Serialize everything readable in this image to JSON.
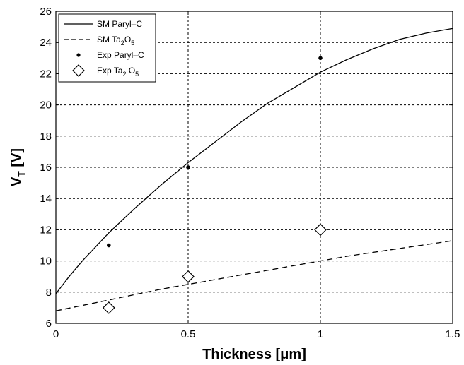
{
  "chart_data": {
    "type": "line",
    "title": "",
    "xlabel": "Thickness [μm]",
    "ylabel": {
      "main": "V",
      "sub": "T",
      "unit": " [V]"
    },
    "xlim": [
      0,
      1.5
    ],
    "ylim": [
      6,
      26
    ],
    "xticks": [
      0,
      0.5,
      1,
      1.5
    ],
    "xtick_labels": [
      "0",
      "0.5",
      "1",
      "1.5"
    ],
    "yticks": [
      6,
      8,
      10,
      12,
      14,
      16,
      18,
      20,
      22,
      24,
      26
    ],
    "ytick_labels": [
      "6",
      "8",
      "10",
      "12",
      "14",
      "16",
      "18",
      "20",
      "22",
      "24",
      "26"
    ],
    "grid": true,
    "legend_position": "top-left",
    "series": [
      {
        "name": "SM Paryl–C",
        "legend": {
          "base": "SM Paryl–C",
          "sub": "",
          "tail": ""
        },
        "style": "solid-line",
        "x": [
          0,
          0.05,
          0.1,
          0.15,
          0.2,
          0.3,
          0.4,
          0.5,
          0.6,
          0.7,
          0.8,
          0.9,
          1.0,
          1.1,
          1.2,
          1.3,
          1.4,
          1.5
        ],
        "y": [
          7.9,
          9.0,
          10.0,
          10.9,
          11.8,
          13.4,
          14.9,
          16.3,
          17.6,
          18.9,
          20.1,
          21.1,
          22.1,
          22.9,
          23.6,
          24.2,
          24.6,
          24.9
        ]
      },
      {
        "name": "SM Ta2O5",
        "legend": {
          "base": "SM Ta",
          "sub": "2",
          "tail": "O",
          "sub2": "5"
        },
        "style": "dashed-line",
        "x": [
          0,
          0.1,
          0.2,
          0.3,
          0.4,
          0.5,
          0.6,
          0.7,
          0.8,
          0.9,
          1.0,
          1.1,
          1.2,
          1.3,
          1.4,
          1.5
        ],
        "y": [
          6.8,
          7.15,
          7.5,
          7.85,
          8.2,
          8.5,
          8.8,
          9.1,
          9.4,
          9.7,
          10.0,
          10.3,
          10.55,
          10.8,
          11.05,
          11.3
        ]
      },
      {
        "name": "Exp Paryl–C",
        "legend": {
          "base": "Exp Paryl–C",
          "sub": "",
          "tail": ""
        },
        "style": "dot-marker",
        "x": [
          0.2,
          0.5,
          1.0
        ],
        "y": [
          11,
          16,
          23
        ]
      },
      {
        "name": "Exp Ta2O5",
        "legend": {
          "base": "Exp Ta",
          "sub": "2",
          "tail": " O",
          "sub2": "5"
        },
        "style": "diamond-marker",
        "x": [
          0.2,
          0.5,
          1.0
        ],
        "y": [
          7,
          9,
          12
        ]
      }
    ]
  }
}
